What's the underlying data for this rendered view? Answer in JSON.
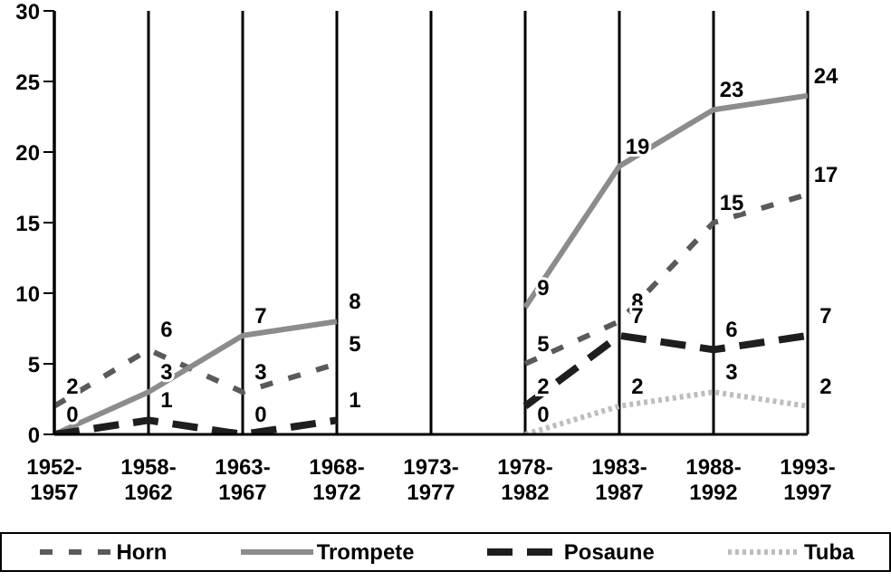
{
  "chart_data": {
    "type": "line",
    "categories": [
      "1952-1957",
      "1958-1962",
      "1963-1967",
      "1968-1972",
      "1973-1977",
      "1978-1982",
      "1983-1987",
      "1988-1992",
      "1993-1997"
    ],
    "series": [
      {
        "name": "Horn",
        "color": "#5a5a5a",
        "line_style": "dashed",
        "values": [
          2,
          6,
          3,
          5,
          null,
          5,
          8,
          15,
          17
        ],
        "value_labels": [
          "2",
          "6",
          "3",
          "5",
          null,
          "5",
          "8",
          "15",
          "17"
        ]
      },
      {
        "name": "Trompete",
        "color": "#8c8c8c",
        "line_style": "solid",
        "values": [
          0,
          3,
          7,
          8,
          null,
          9,
          19,
          23,
          24
        ],
        "value_labels": [
          "0",
          "3",
          "7",
          "8",
          null,
          "9",
          "19",
          "23",
          "24"
        ]
      },
      {
        "name": "Posaune",
        "color": "#1e1e1e",
        "line_style": "dashed",
        "values": [
          0,
          1,
          0,
          1,
          null,
          2,
          7,
          6,
          7
        ],
        "value_labels": [
          null,
          "1",
          "0",
          "1",
          null,
          "2",
          "7",
          "6",
          "7"
        ]
      },
      {
        "name": "Tuba",
        "color": "#bdbdbd",
        "line_style": "dotted",
        "values": [
          null,
          null,
          null,
          null,
          null,
          0,
          2,
          3,
          2
        ],
        "value_labels": [
          null,
          null,
          null,
          null,
          null,
          "0",
          "2",
          "3",
          "2"
        ]
      }
    ],
    "ylim": [
      0,
      30
    ],
    "yticks": [
      0,
      5,
      10,
      15,
      20,
      25,
      30
    ],
    "grid": "x",
    "legend": "bottom",
    "marker": "none"
  }
}
